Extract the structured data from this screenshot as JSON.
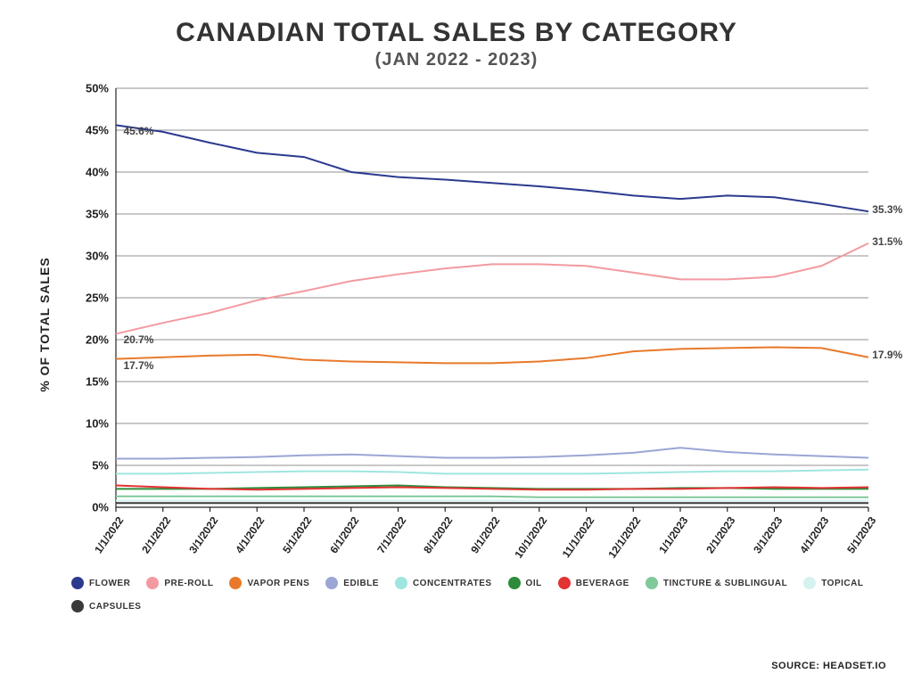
{
  "title": "CANADIAN TOTAL SALES BY CATEGORY",
  "subtitle": "(JAN 2022 - 2023)",
  "title_fontsize": 30,
  "subtitle_fontsize": 20,
  "y_axis_label": "% OF TOTAL SALES",
  "source_label": "SOURCE:",
  "source_value": "HEADSET.IO",
  "background_color": "#ffffff",
  "grid_color": "#222222",
  "chart": {
    "type": "line",
    "ylim": [
      0,
      50
    ],
    "ytick_step": 5,
    "ytick_suffix": "%",
    "x_labels": [
      "1/1/2022",
      "2/1/2022",
      "3/1/2022",
      "4/1/2022",
      "5/1/2022",
      "6/1/2022",
      "7/1/2022",
      "8/1/2022",
      "9/1/2022",
      "10/1/2022",
      "11/1/2022",
      "12/1/2022",
      "1/1/2023",
      "2/1/2023",
      "3/1/2023",
      "4/1/2023",
      "5/1/2023"
    ],
    "series": [
      {
        "name": "FLOWER",
        "color": "#2b3a8f",
        "values": [
          45.6,
          44.8,
          43.5,
          42.3,
          41.8,
          40.0,
          39.4,
          39.1,
          38.7,
          38.3,
          37.8,
          37.2,
          36.8,
          37.2,
          37.0,
          36.2,
          35.3
        ],
        "start_label": "45.6%",
        "end_label": "35.3%",
        "line_width": 2
      },
      {
        "name": "PRE-ROLL",
        "color": "#f39aa0",
        "values": [
          20.7,
          22.0,
          23.2,
          24.7,
          25.8,
          27.0,
          27.8,
          28.5,
          29.0,
          29.0,
          28.8,
          28.0,
          27.2,
          27.2,
          27.5,
          28.8,
          31.5
        ],
        "start_label": "20.7%",
        "end_label": "31.5%",
        "line_width": 2
      },
      {
        "name": "VAPOR PENS",
        "color": "#e8792a",
        "values": [
          17.7,
          17.9,
          18.1,
          18.2,
          17.6,
          17.4,
          17.3,
          17.2,
          17.2,
          17.4,
          17.8,
          18.6,
          18.9,
          19.0,
          19.1,
          19.0,
          17.9
        ],
        "start_label": "17.7%",
        "end_label": "17.9%",
        "line_width": 2
      },
      {
        "name": "EDIBLE",
        "color": "#9aa6d4",
        "values": [
          5.8,
          5.8,
          5.9,
          6.0,
          6.2,
          6.3,
          6.1,
          5.9,
          5.9,
          6.0,
          6.2,
          6.5,
          7.1,
          6.6,
          6.3,
          6.1,
          5.9
        ],
        "line_width": 1.6
      },
      {
        "name": "CONCENTRATES",
        "color": "#9fe6e0",
        "values": [
          4.0,
          4.0,
          4.1,
          4.2,
          4.3,
          4.3,
          4.2,
          4.0,
          4.0,
          4.0,
          4.0,
          4.1,
          4.2,
          4.3,
          4.3,
          4.4,
          4.5
        ],
        "line_width": 1.6
      },
      {
        "name": "OIL",
        "color": "#2e8b3b",
        "values": [
          2.2,
          2.2,
          2.2,
          2.3,
          2.4,
          2.5,
          2.6,
          2.4,
          2.3,
          2.2,
          2.2,
          2.2,
          2.3,
          2.3,
          2.2,
          2.2,
          2.2
        ],
        "line_width": 1.6
      },
      {
        "name": "BEVERAGE",
        "color": "#e23232",
        "values": [
          2.6,
          2.4,
          2.2,
          2.1,
          2.2,
          2.3,
          2.4,
          2.3,
          2.2,
          2.1,
          2.1,
          2.2,
          2.2,
          2.3,
          2.4,
          2.3,
          2.4
        ],
        "line_width": 1.6
      },
      {
        "name": "TINCTURE & SUBLINGUAL",
        "color": "#7fc99a",
        "values": [
          1.3,
          1.3,
          1.3,
          1.3,
          1.3,
          1.3,
          1.3,
          1.3,
          1.3,
          1.2,
          1.2,
          1.2,
          1.2,
          1.2,
          1.2,
          1.2,
          1.2
        ],
        "line_width": 1.4
      },
      {
        "name": "TOPICAL",
        "color": "#d6f2ef",
        "values": [
          0.8,
          0.8,
          0.8,
          0.8,
          0.8,
          0.8,
          0.8,
          0.8,
          0.8,
          0.8,
          0.8,
          0.8,
          0.8,
          0.8,
          0.8,
          0.8,
          0.8
        ],
        "line_width": 1.4
      },
      {
        "name": "CAPSULES",
        "color": "#3a3a3a",
        "values": [
          0.5,
          0.5,
          0.5,
          0.5,
          0.5,
          0.5,
          0.5,
          0.5,
          0.5,
          0.5,
          0.5,
          0.5,
          0.5,
          0.5,
          0.5,
          0.5,
          0.5
        ],
        "line_width": 1.4
      }
    ]
  }
}
